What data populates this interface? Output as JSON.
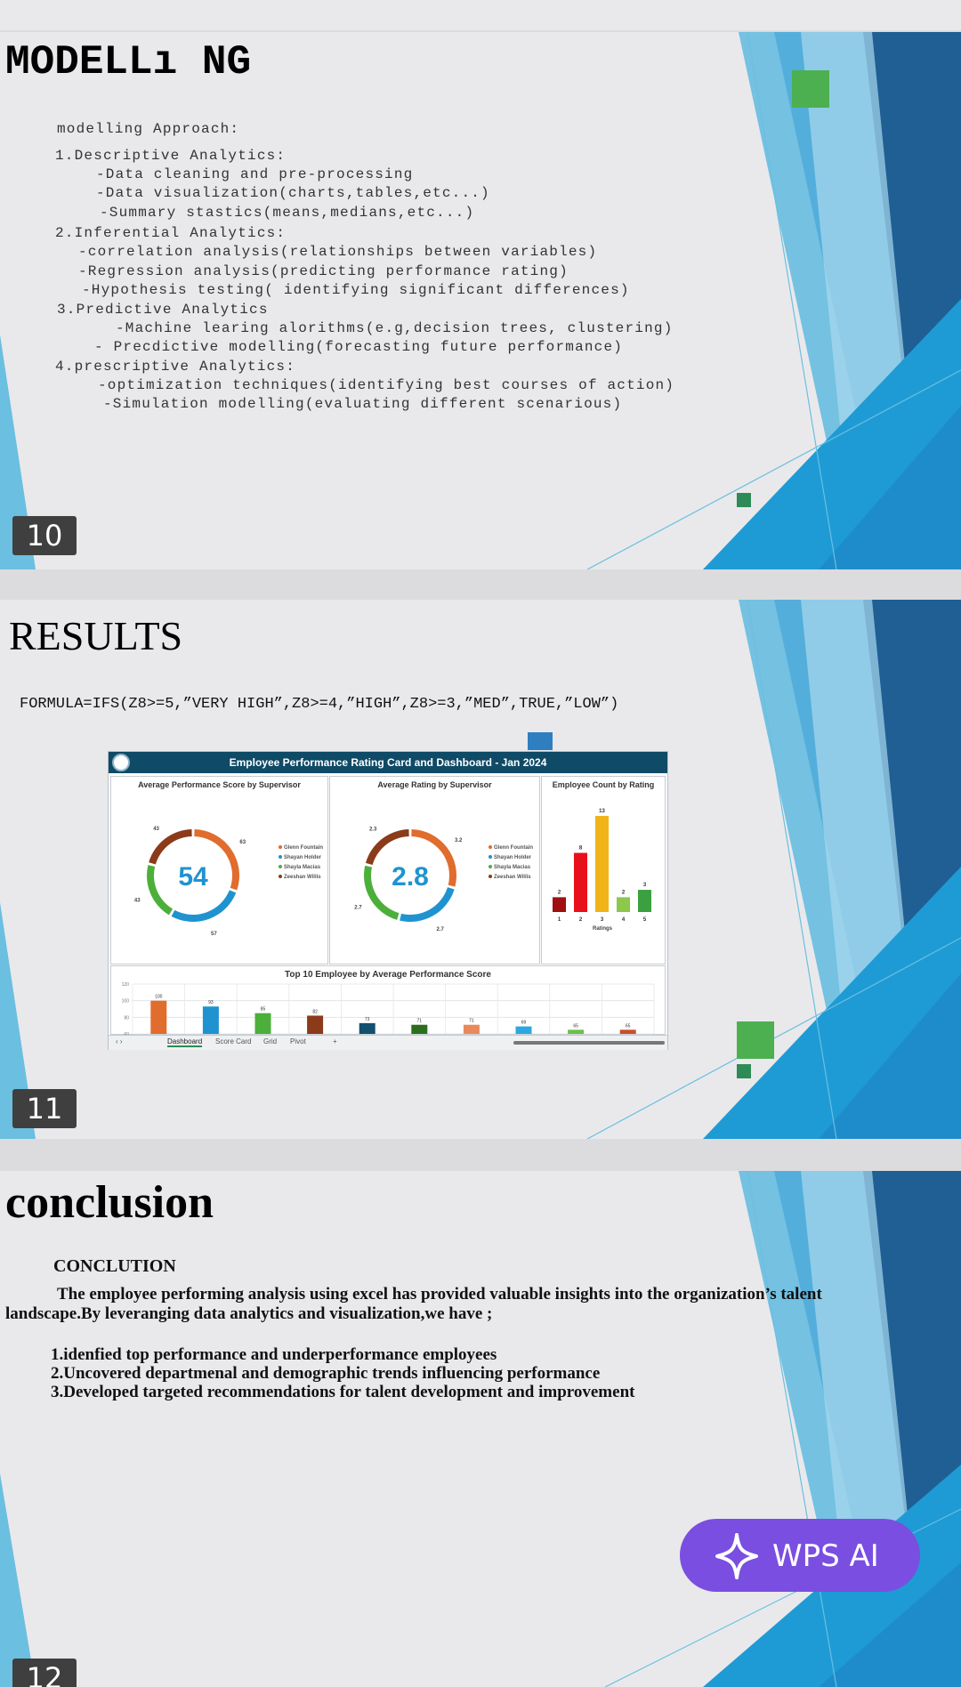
{
  "slide10": {
    "number": "10",
    "title": "MODELLı NG",
    "lines": [
      "modelling Approach:",
      "1.Descriptive Analytics:",
      "-Data cleaning and pre-processing",
      "-Data visualization(charts,tables,etc...)",
      "-Summary stastics(means,medians,etc...)",
      "2.Inferential Analytics:",
      "-correlation analysis(relationships between variables)",
      "-Regression analysis(predicting performance rating)",
      "-Hypothesis testing( identifying significant differences)",
      "3.Predictive Analytics",
      "-Machine learing alorithms(e.g,decision trees, clustering)",
      "- Precdictive modelling(forecasting future performance)",
      "4.prescriptive Analytics:",
      "-optimization techniques(identifying best courses of action)",
      "-Simulation modelling(evaluating different scenarious)"
    ]
  },
  "slide11": {
    "number": "11",
    "title": "RESULTS",
    "formula": "FORMULA=IFS(Z8>=5,”VERY HIGH”,Z8>=4,”HIGH”,Z8>=3,”MED”,TRUE,”LOW”)",
    "dashboard": {
      "title": "Employee Performance Rating Card and Dashboard - Jan 2024",
      "legend": [
        "Glenn Fountain",
        "Shayan Holder",
        "Shayla Macias",
        "Zeeshan Willis"
      ],
      "tabs": [
        "Dashboard",
        "Score Card",
        "Grid",
        "Pivot",
        "+"
      ]
    }
  },
  "slide12": {
    "number": "12",
    "title": "conclusion",
    "heading": "CONCLUTION",
    "paragraph1": "The employee performing analysis using excel has provided valuable insights into the organization’s talent",
    "paragraph2": "landscape.By leveranging data analytics and visualization,we have ;",
    "points": [
      "1.idenfied top performance and underperformance employees",
      "2.Uncovered departmenal and demographic trends influencing performance",
      "3.Developed targeted recommendations for talent development and improvement"
    ]
  },
  "wps_ai": {
    "label": "WPS AI",
    "icon": "sparkle-icon"
  },
  "colors": {
    "accent_dark": "#1f5f94",
    "accent_mid": "#3a9ed6",
    "accent_light": "#74c1e2",
    "green_square": "#4caf50",
    "wps_purple": "#7a4ee0"
  },
  "chart_data": [
    {
      "type": "pie",
      "title": "Average Performance Score by Supervisor",
      "center_label": "54",
      "categories": [
        "Glenn Fountain",
        "Shayan Holder",
        "Shayla Macias",
        "Zeeshan Willis"
      ],
      "values": [
        63,
        57,
        43,
        43
      ],
      "colors": [
        "#e06c2e",
        "#1f93d0",
        "#4caf3a",
        "#8b3a1a"
      ]
    },
    {
      "type": "pie",
      "title": "Average Rating by Supervisor",
      "center_label": "2.8",
      "categories": [
        "Glenn Fountain",
        "Shayan Holder",
        "Shayla Macias",
        "Zeeshan Willis"
      ],
      "values": [
        3.2,
        2.7,
        2.7,
        2.3
      ],
      "colors": [
        "#e06c2e",
        "#1f93d0",
        "#4caf3a",
        "#8b3a1a"
      ]
    },
    {
      "type": "bar",
      "title": "Employee Count by Rating",
      "xlabel": "Ratings",
      "categories": [
        "1",
        "2",
        "3",
        "4",
        "5"
      ],
      "values": [
        2,
        8,
        13,
        2,
        3
      ],
      "colors": [
        "#a01010",
        "#e8101a",
        "#f0b418",
        "#8cc84b",
        "#3aa040"
      ]
    },
    {
      "type": "bar",
      "title": "Top 10 Employee by Average Performance Score",
      "ylim": [
        60,
        120
      ],
      "yticks": [
        60,
        80,
        100,
        120
      ],
      "values": [
        100,
        93,
        85,
        82,
        73,
        71,
        71,
        69,
        65,
        65
      ],
      "colors": [
        "#e06c2e",
        "#1f93d0",
        "#4caf3a",
        "#8b3a1a",
        "#13506e",
        "#2a6e1e",
        "#e8895c",
        "#2ba8e0",
        "#6cc04a",
        "#c8502a"
      ]
    }
  ]
}
